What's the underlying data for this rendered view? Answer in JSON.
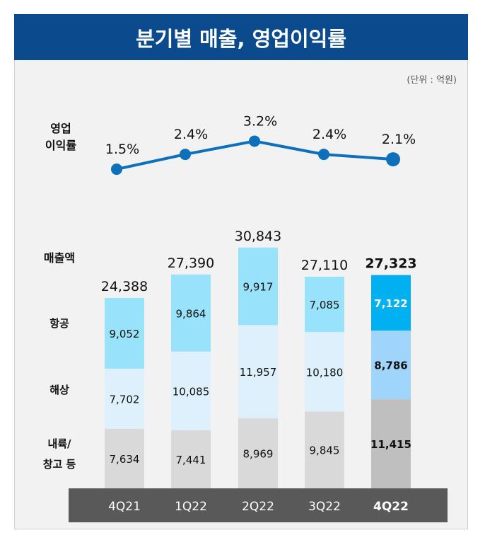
{
  "chart_data": {
    "title": "분기별 매출, 영업이익률",
    "unit_note": "(단위 : 억원)",
    "categories": [
      "4Q21",
      "1Q22",
      "2Q22",
      "3Q22",
      "4Q22"
    ],
    "highlight_category": "4Q22",
    "line": {
      "type": "line",
      "label_lines": [
        "영업",
        "이익률"
      ],
      "values": [
        1.5,
        2.4,
        3.2,
        2.4,
        2.1
      ],
      "value_labels": [
        "1.5%",
        "2.4%",
        "3.2%",
        "2.4%",
        "2.1%"
      ],
      "color": "#0e6fba"
    },
    "bar": {
      "type": "stacked-bar",
      "label": "매출액",
      "totals": [
        24388,
        27390,
        30843,
        27110,
        27323
      ],
      "total_labels": [
        "24,388",
        "27,390",
        "30,843",
        "27,110",
        "27,323"
      ],
      "series": [
        {
          "name": "내륙/창고 등",
          "label_lines": [
            "내륙/",
            "창고 등"
          ],
          "values": [
            7634,
            7441,
            8969,
            9845,
            11415
          ],
          "labels": [
            "7,634",
            "7,441",
            "8,969",
            "9,845",
            "11,415"
          ],
          "color": "#d9d9d9",
          "highlight_color": "#bfbfbf"
        },
        {
          "name": "해상",
          "label_lines": [
            "해상"
          ],
          "values": [
            7702,
            10085,
            11957,
            10180,
            8786
          ],
          "labels": [
            "7,702",
            "10,085",
            "11,957",
            "10,180",
            "8,786"
          ],
          "color": "#ddf0fc",
          "highlight_color": "#9fd5fb"
        },
        {
          "name": "항공",
          "label_lines": [
            "항공"
          ],
          "values": [
            9052,
            9864,
            9917,
            7085,
            7122
          ],
          "labels": [
            "9,052",
            "9,864",
            "9,917",
            "7,085",
            "7,122"
          ],
          "color": "#99e2fb",
          "highlight_color": "#00b0f0"
        }
      ]
    },
    "colors": {
      "title_bg": "#0b4a8c",
      "category_bar": "#595959"
    }
  }
}
